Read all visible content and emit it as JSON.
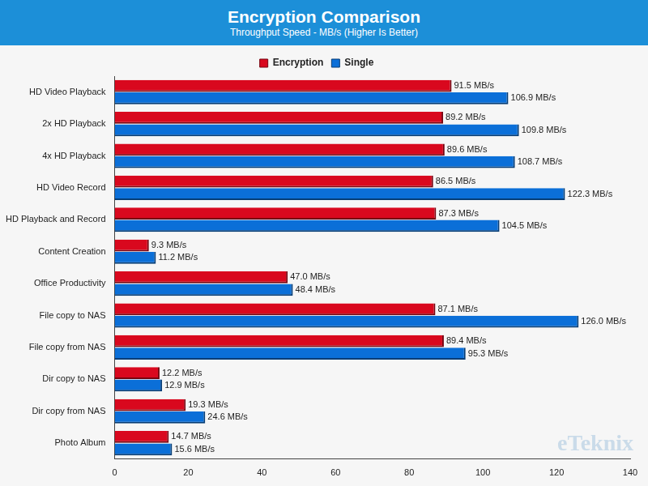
{
  "chart_data": {
    "type": "bar",
    "orientation": "horizontal",
    "title": "Encryption Comparison",
    "subtitle": "Throughput Speed - MB/s (Higher Is Better)",
    "annotations": [
      "eTeknix"
    ],
    "categories": [
      "HD Video Playback",
      "2x HD Playback",
      "4x HD Playback",
      "HD Video Record",
      "HD Playback and Record",
      "Content Creation",
      "Office Productivity",
      "File copy to NAS",
      "File copy from NAS",
      "Dir copy to NAS",
      "Dir copy from NAS",
      "Photo Album"
    ],
    "series": [
      {
        "name": "Encryption",
        "color": "#d9081e",
        "values": [
          91.5,
          89.2,
          89.6,
          86.5,
          87.3,
          9.3,
          47.0,
          87.1,
          89.4,
          12.2,
          19.3,
          14.7
        ],
        "value_labels": [
          "91.5 MB/s",
          "89.2 MB/s",
          "89.6 MB/s",
          "86.5 MB/s",
          "87.3 MB/s",
          "9.3 MB/s",
          "47.0 MB/s",
          "87.1 MB/s",
          "89.4 MB/s",
          "12.2 MB/s",
          "19.3 MB/s",
          "14.7 MB/s"
        ]
      },
      {
        "name": "Single",
        "color": "#0b6fd8",
        "values": [
          106.9,
          109.8,
          108.7,
          122.3,
          104.5,
          11.2,
          48.4,
          126.0,
          95.3,
          12.9,
          24.6,
          15.6
        ],
        "value_labels": [
          "106.9 MB/s",
          "109.8 MB/s",
          "108.7 MB/s",
          "122.3 MB/s",
          "104.5 MB/s",
          "11.2 MB/s",
          "48.4 MB/s",
          "126.0 MB/s",
          "95.3 MB/s",
          "12.9 MB/s",
          "24.6 MB/s",
          "15.6 MB/s"
        ]
      }
    ],
    "xlim": [
      0,
      140
    ],
    "xticks": [
      0,
      20,
      40,
      60,
      80,
      100,
      120,
      140
    ],
    "grid": false,
    "legend": "top",
    "data_labels": true
  }
}
